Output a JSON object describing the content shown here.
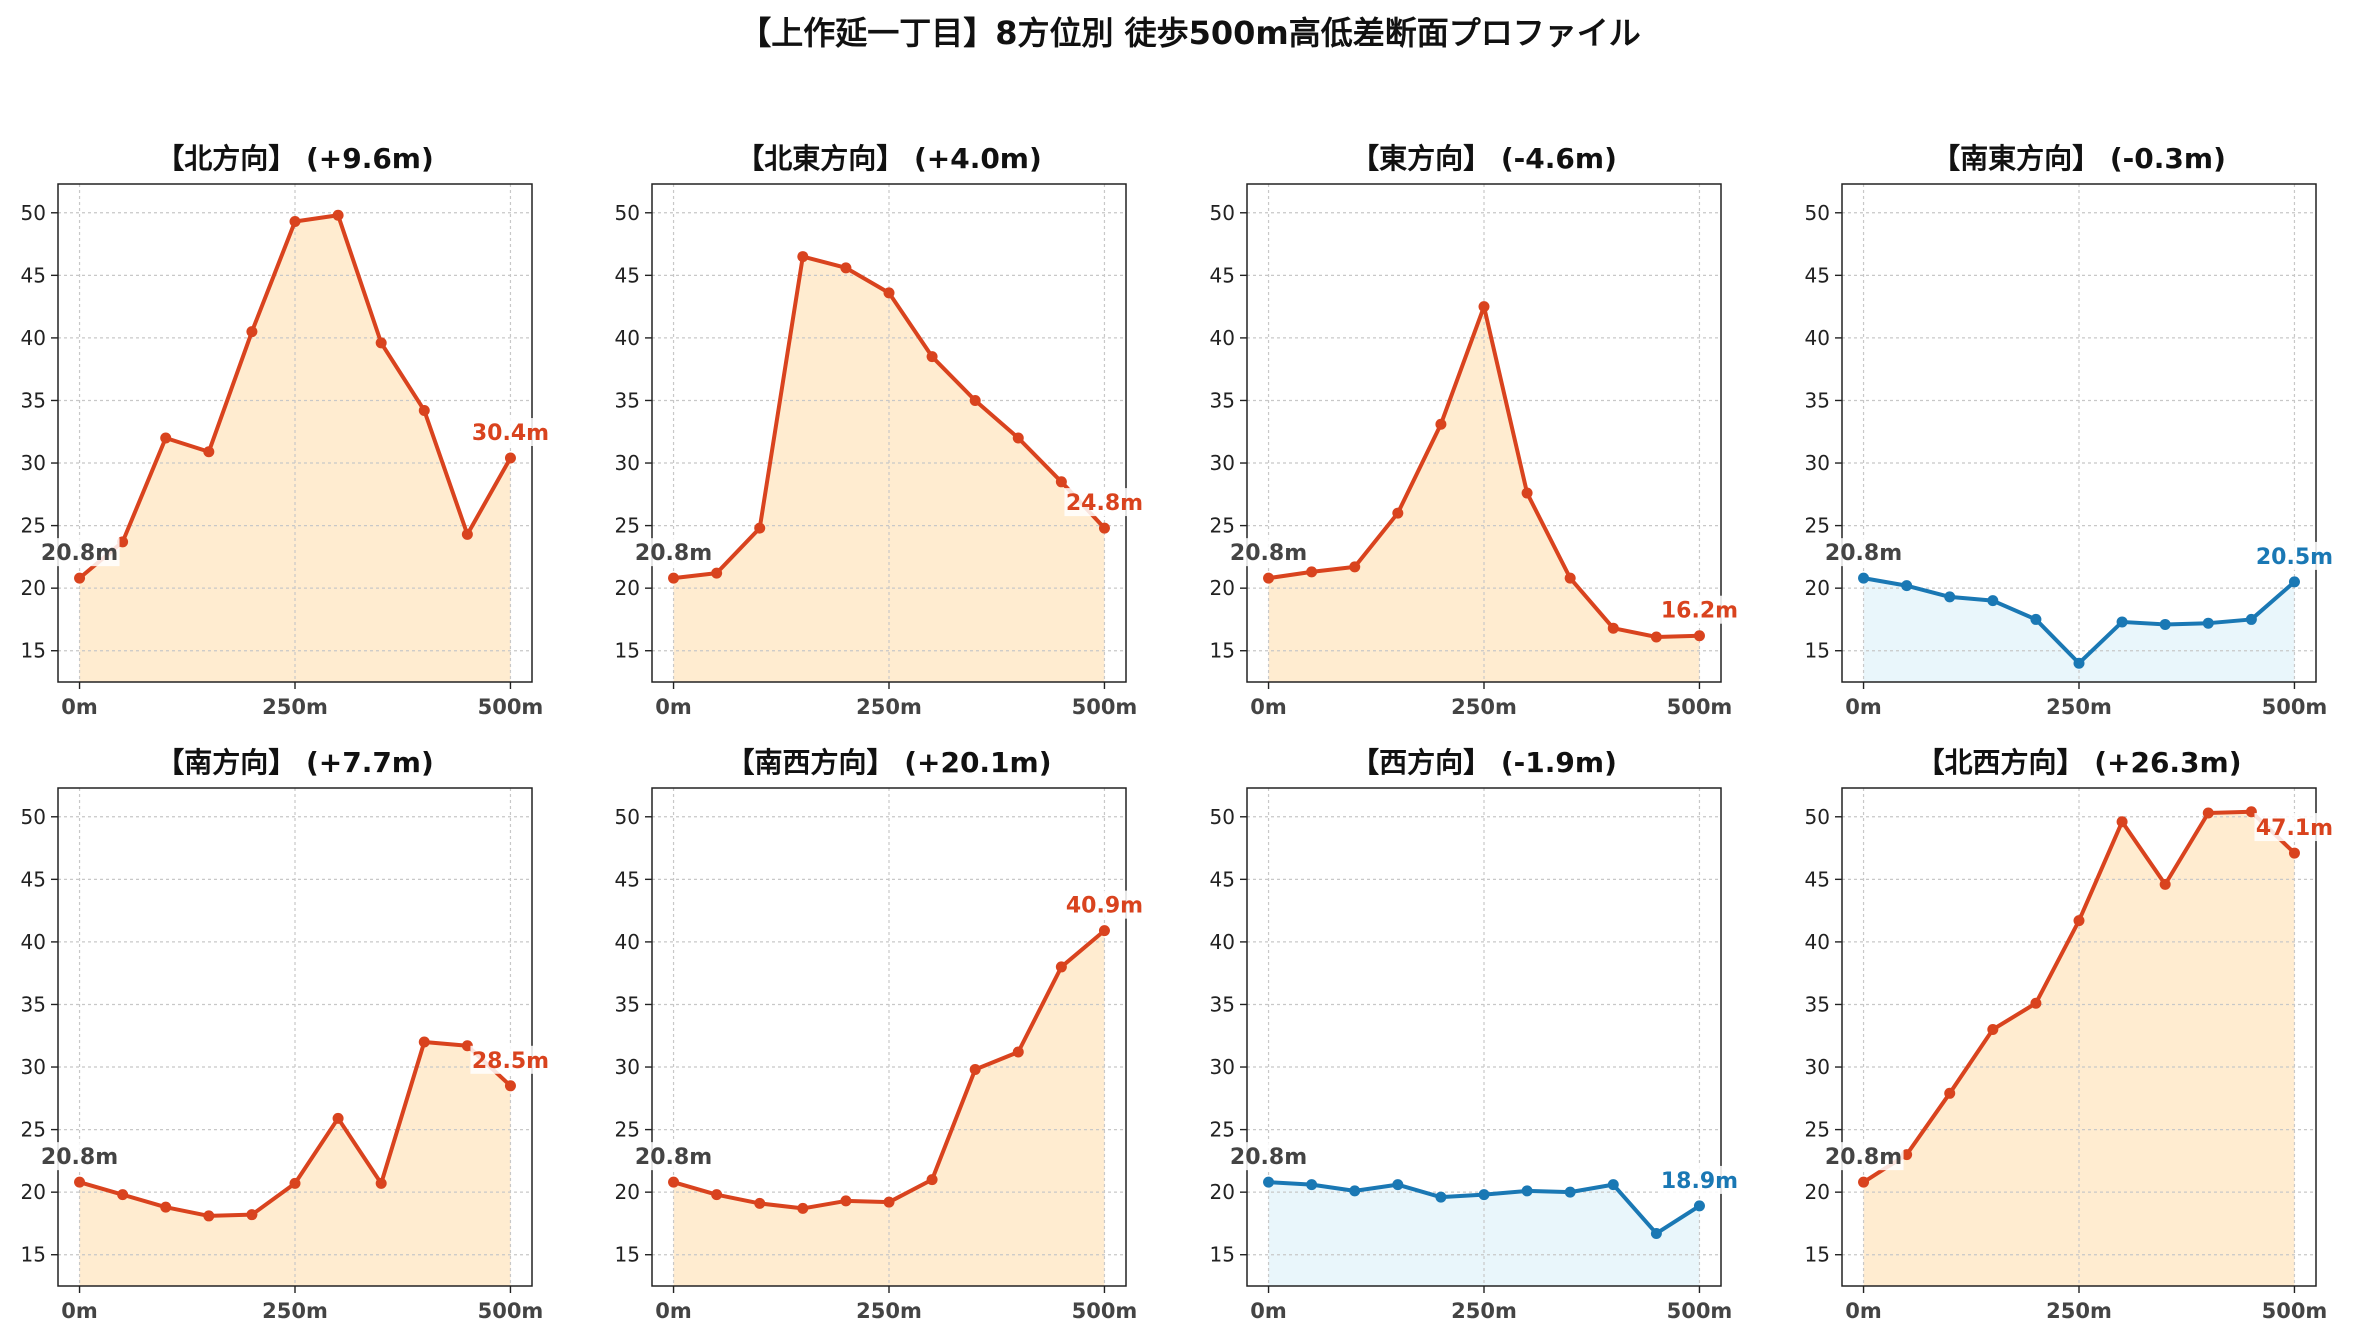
{
  "title": "【上作延一丁目】8方位別 徒歩500m高低差断面プロファイル",
  "colors": {
    "up_line": "#d9431e",
    "up_fill": "#ffecd0",
    "down_line": "#1a78b4",
    "down_fill": "#e9f6fb",
    "start_label": "#444444",
    "grid": "#c8c8c8"
  },
  "chart_data": [
    {
      "type": "line",
      "title": "【北方向】 (+9.6m)",
      "trend": "up",
      "x": [
        0,
        50,
        100,
        150,
        200,
        250,
        300,
        350,
        400,
        450,
        500
      ],
      "y": [
        20.8,
        23.7,
        32.0,
        30.9,
        40.5,
        49.3,
        49.8,
        39.6,
        34.2,
        24.3,
        30.4
      ],
      "start_label": "20.8m",
      "end_label": "30.4m",
      "xticks": [
        "0m",
        "250m",
        "500m"
      ],
      "ylim": [
        12.5,
        52.3
      ],
      "yticks": [
        15,
        20,
        25,
        30,
        35,
        40,
        45,
        50
      ],
      "grid": true
    },
    {
      "type": "line",
      "title": "【北東方向】 (+4.0m)",
      "trend": "up",
      "x": [
        0,
        50,
        100,
        150,
        200,
        250,
        300,
        350,
        400,
        450,
        500
      ],
      "y": [
        20.8,
        21.2,
        24.8,
        46.5,
        45.6,
        43.6,
        38.5,
        35.0,
        32.0,
        28.5,
        24.8
      ],
      "start_label": "20.8m",
      "end_label": "24.8m",
      "xticks": [
        "0m",
        "250m",
        "500m"
      ],
      "ylim": [
        12.5,
        52.3
      ],
      "yticks": [
        15,
        20,
        25,
        30,
        35,
        40,
        45,
        50
      ],
      "grid": true
    },
    {
      "type": "line",
      "title": "【東方向】 (-4.6m)",
      "trend": "up",
      "x": [
        0,
        50,
        100,
        150,
        200,
        250,
        300,
        350,
        400,
        450,
        500
      ],
      "y": [
        20.8,
        21.3,
        21.7,
        26.0,
        33.1,
        42.5,
        27.6,
        20.8,
        16.8,
        16.1,
        16.2
      ],
      "start_label": "20.8m",
      "end_label": "16.2m",
      "xticks": [
        "0m",
        "250m",
        "500m"
      ],
      "ylim": [
        12.5,
        52.3
      ],
      "yticks": [
        15,
        20,
        25,
        30,
        35,
        40,
        45,
        50
      ],
      "grid": true
    },
    {
      "type": "line",
      "title": "【南東方向】 (-0.3m)",
      "trend": "down",
      "x": [
        0,
        50,
        100,
        150,
        200,
        250,
        300,
        350,
        400,
        450,
        500
      ],
      "y": [
        20.8,
        20.2,
        19.3,
        19.0,
        17.5,
        14.0,
        17.3,
        17.1,
        17.2,
        17.5,
        20.5
      ],
      "start_label": "20.8m",
      "end_label": "20.5m",
      "xticks": [
        "0m",
        "250m",
        "500m"
      ],
      "ylim": [
        12.5,
        52.3
      ],
      "yticks": [
        15,
        20,
        25,
        30,
        35,
        40,
        45,
        50
      ],
      "grid": true
    },
    {
      "type": "line",
      "title": "【南方向】 (+7.7m)",
      "trend": "up",
      "x": [
        0,
        50,
        100,
        150,
        200,
        250,
        300,
        350,
        400,
        450,
        500
      ],
      "y": [
        20.8,
        19.8,
        18.8,
        18.1,
        18.2,
        20.7,
        25.9,
        20.7,
        32.0,
        31.7,
        28.5
      ],
      "start_label": "20.8m",
      "end_label": "28.5m",
      "xticks": [
        "0m",
        "250m",
        "500m"
      ],
      "ylim": [
        12.5,
        52.3
      ],
      "yticks": [
        15,
        20,
        25,
        30,
        35,
        40,
        45,
        50
      ],
      "grid": true
    },
    {
      "type": "line",
      "title": "【南西方向】 (+20.1m)",
      "trend": "up",
      "x": [
        0,
        50,
        100,
        150,
        200,
        250,
        300,
        350,
        400,
        450,
        500
      ],
      "y": [
        20.8,
        19.8,
        19.1,
        18.7,
        19.3,
        19.2,
        21.0,
        29.8,
        31.2,
        38.0,
        40.9
      ],
      "start_label": "20.8m",
      "end_label": "40.9m",
      "xticks": [
        "0m",
        "250m",
        "500m"
      ],
      "ylim": [
        12.5,
        52.3
      ],
      "yticks": [
        15,
        20,
        25,
        30,
        35,
        40,
        45,
        50
      ],
      "grid": true
    },
    {
      "type": "line",
      "title": "【西方向】 (-1.9m)",
      "trend": "down",
      "x": [
        0,
        50,
        100,
        150,
        200,
        250,
        300,
        350,
        400,
        450,
        500
      ],
      "y": [
        20.8,
        20.6,
        20.1,
        20.6,
        19.6,
        19.8,
        20.1,
        20.0,
        20.6,
        16.7,
        18.9
      ],
      "start_label": "20.8m",
      "end_label": "18.9m",
      "xticks": [
        "0m",
        "250m",
        "500m"
      ],
      "ylim": [
        12.5,
        52.3
      ],
      "yticks": [
        15,
        20,
        25,
        30,
        35,
        40,
        45,
        50
      ],
      "grid": true
    },
    {
      "type": "line",
      "title": "【北西方向】 (+26.3m)",
      "trend": "up",
      "x": [
        0,
        50,
        100,
        150,
        200,
        250,
        300,
        350,
        400,
        450,
        500
      ],
      "y": [
        20.8,
        23.0,
        27.9,
        33.0,
        35.1,
        41.7,
        49.6,
        44.6,
        50.3,
        50.4,
        47.1
      ],
      "start_label": "20.8m",
      "end_label": "47.1m",
      "xticks": [
        "0m",
        "250m",
        "500m"
      ],
      "ylim": [
        12.5,
        52.3
      ],
      "yticks": [
        15,
        20,
        25,
        30,
        35,
        40,
        45,
        50
      ],
      "grid": true
    }
  ]
}
